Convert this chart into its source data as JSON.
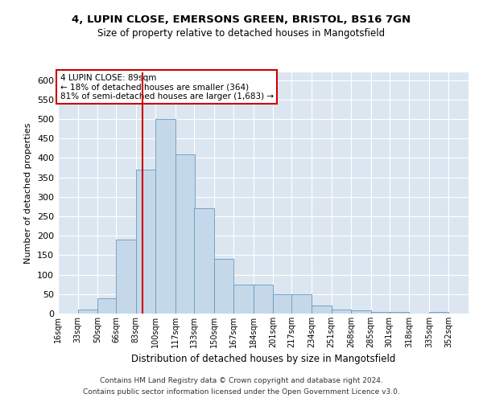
{
  "title1": "4, LUPIN CLOSE, EMERSONS GREEN, BRISTOL, BS16 7GN",
  "title2": "Size of property relative to detached houses in Mangotsfield",
  "xlabel": "Distribution of detached houses by size in Mangotsfield",
  "ylabel": "Number of detached properties",
  "footer1": "Contains HM Land Registry data © Crown copyright and database right 2024.",
  "footer2": "Contains public sector information licensed under the Open Government Licence v3.0.",
  "annotation_line1": "4 LUPIN CLOSE: 89sqm",
  "annotation_line2": "← 18% of detached houses are smaller (364)",
  "annotation_line3": "81% of semi-detached houses are larger (1,683) →",
  "property_size": 89,
  "bar_color": "#c5d8ea",
  "bar_edge_color": "#6699bb",
  "marker_color": "#cc0000",
  "bg_color": "#dce6f0",
  "categories": [
    "16sqm",
    "33sqm",
    "50sqm",
    "66sqm",
    "83sqm",
    "100sqm",
    "117sqm",
    "133sqm",
    "150sqm",
    "167sqm",
    "184sqm",
    "201sqm",
    "217sqm",
    "234sqm",
    "251sqm",
    "268sqm",
    "285sqm",
    "301sqm",
    "318sqm",
    "335sqm",
    "352sqm"
  ],
  "bin_starts": [
    16,
    33,
    50,
    66,
    83,
    100,
    117,
    133,
    150,
    167,
    184,
    201,
    217,
    234,
    251,
    268,
    285,
    301,
    318,
    335,
    352
  ],
  "bin_width": 17,
  "values": [
    1,
    10,
    40,
    190,
    370,
    500,
    410,
    270,
    140,
    75,
    75,
    50,
    50,
    20,
    10,
    8,
    5,
    5,
    0,
    5,
    1
  ],
  "ylim": [
    0,
    620
  ],
  "yticks": [
    0,
    50,
    100,
    150,
    200,
    250,
    300,
    350,
    400,
    450,
    500,
    550,
    600
  ],
  "xlim_left": 16,
  "xlim_right": 369
}
